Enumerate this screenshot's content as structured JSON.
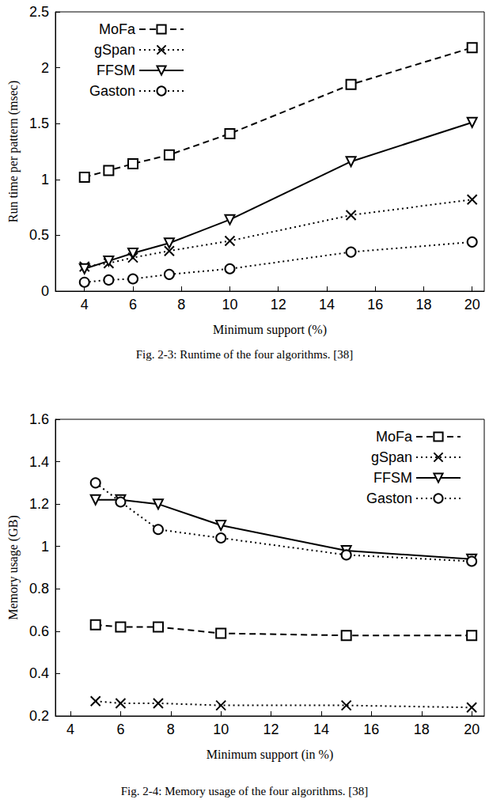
{
  "chart_data": [
    {
      "type": "line",
      "caption": "Fig. 2-3: Runtime of the four algorithms. [38]",
      "x_label": "Minimum support (%)",
      "y_label": "Run time per pattern (msec)",
      "xlim": [
        2.8,
        20.5
      ],
      "xticks": [
        4,
        6,
        8,
        10,
        12,
        14,
        16,
        18,
        20
      ],
      "ylim": [
        0,
        2.5
      ],
      "yticks": [
        0,
        0.5,
        1,
        1.5,
        2,
        2.5
      ],
      "legend": "upper left",
      "grid": false,
      "series": [
        {
          "name": "MoFa",
          "color": "#000000",
          "marker": "square",
          "line_style": "dashed",
          "x": [
            4,
            5,
            6,
            7.5,
            10,
            15,
            20
          ],
          "values": [
            1.02,
            1.08,
            1.14,
            1.22,
            1.41,
            1.85,
            2.18
          ]
        },
        {
          "name": "gSpan",
          "color": "#000000",
          "marker": "x",
          "line_style": "dotted",
          "x": [
            4,
            5,
            6,
            7.5,
            10,
            15,
            20
          ],
          "values": [
            0.22,
            0.25,
            0.3,
            0.36,
            0.45,
            0.68,
            0.82
          ]
        },
        {
          "name": "FFSM",
          "color": "#000000",
          "marker": "triangle-down",
          "line_style": "solid",
          "x": [
            4,
            5,
            6,
            7.5,
            10,
            15,
            20
          ],
          "values": [
            0.2,
            0.27,
            0.34,
            0.43,
            0.64,
            1.16,
            1.51
          ]
        },
        {
          "name": "Gaston",
          "color": "#000000",
          "marker": "circle",
          "line_style": "dotted",
          "x": [
            4,
            5,
            6,
            7.5,
            10,
            15,
            20
          ],
          "values": [
            0.08,
            0.1,
            0.11,
            0.15,
            0.2,
            0.35,
            0.44
          ]
        }
      ]
    },
    {
      "type": "line",
      "caption": "Fig. 2-4: Memory usage of the four algorithms. [38]",
      "x_label": "Minimum support (in %)",
      "y_label": "Memory usage (GB)",
      "xlim": [
        3.4,
        20.5
      ],
      "xticks": [
        4,
        6,
        8,
        10,
        12,
        14,
        16,
        18,
        20
      ],
      "ylim": [
        0.2,
        1.6
      ],
      "yticks": [
        0.2,
        0.4,
        0.6,
        0.8,
        1,
        1.2,
        1.4,
        1.6
      ],
      "legend": "upper right",
      "grid": false,
      "series": [
        {
          "name": "MoFa",
          "color": "#000000",
          "marker": "square",
          "line_style": "dashed",
          "x": [
            5,
            6,
            7.5,
            10,
            15,
            20
          ],
          "values": [
            0.63,
            0.62,
            0.62,
            0.59,
            0.58,
            0.58
          ]
        },
        {
          "name": "gSpan",
          "color": "#000000",
          "marker": "x",
          "line_style": "dotted",
          "x": [
            5,
            6,
            7.5,
            10,
            15,
            20
          ],
          "values": [
            0.27,
            0.26,
            0.26,
            0.25,
            0.25,
            0.24
          ]
        },
        {
          "name": "FFSM",
          "color": "#000000",
          "marker": "triangle-down",
          "line_style": "solid",
          "x": [
            5,
            6,
            7.5,
            10,
            15,
            20
          ],
          "values": [
            1.22,
            1.22,
            1.2,
            1.1,
            0.98,
            0.94
          ]
        },
        {
          "name": "Gaston",
          "color": "#000000",
          "marker": "circle",
          "line_style": "dotted",
          "x": [
            5,
            6,
            7.5,
            10,
            15,
            20
          ],
          "values": [
            1.3,
            1.21,
            1.08,
            1.04,
            0.96,
            0.93
          ]
        }
      ]
    }
  ]
}
